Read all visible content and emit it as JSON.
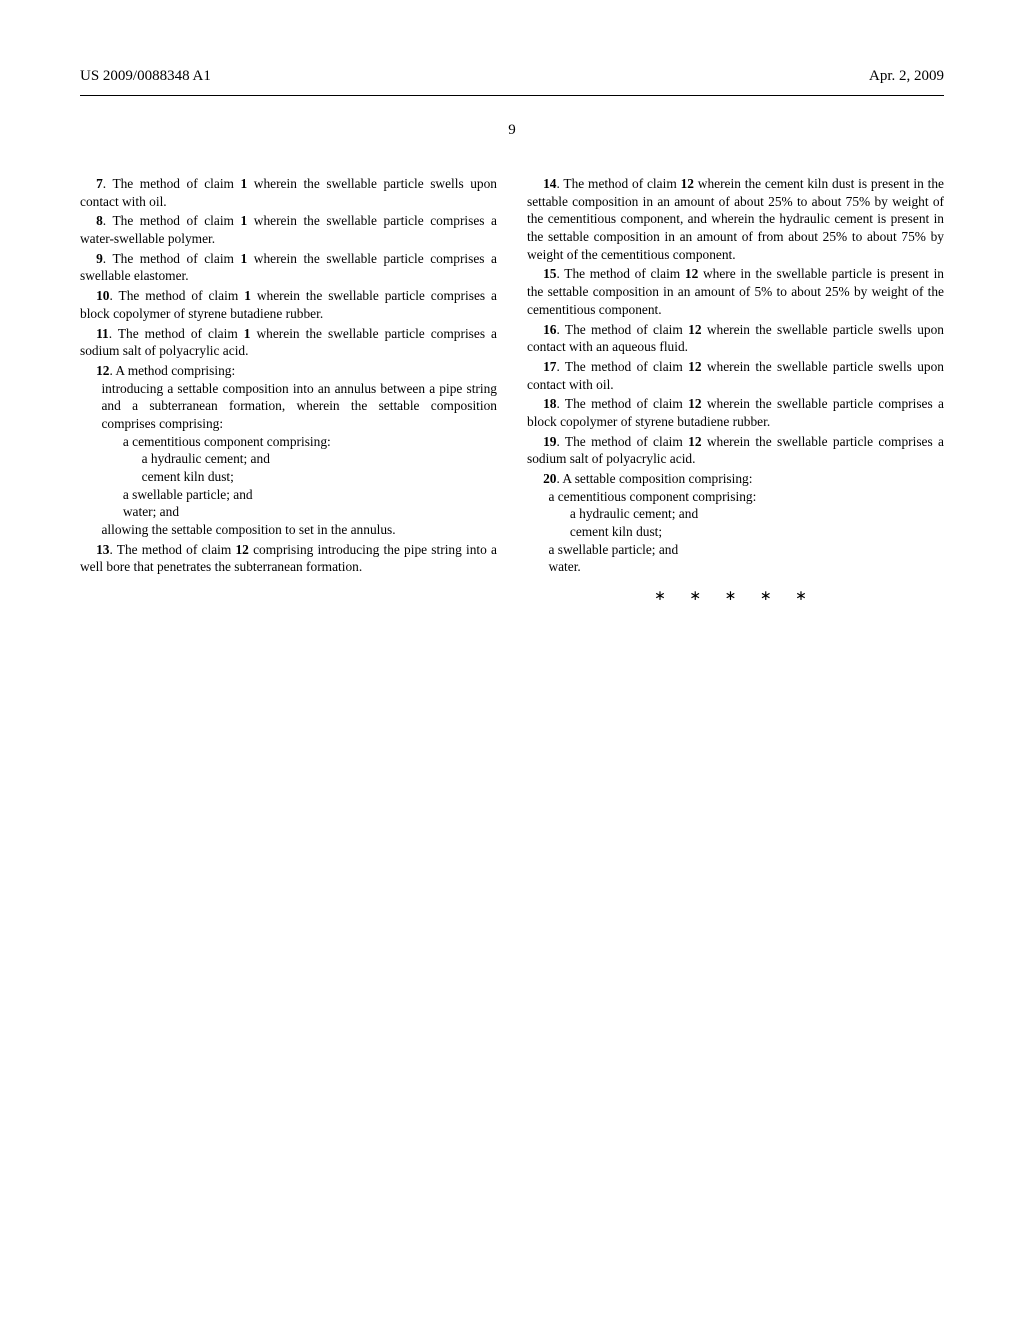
{
  "header": {
    "pub_number": "US 2009/0088348 A1",
    "pub_date": "Apr. 2, 2009",
    "page_number": "9"
  },
  "claims": {
    "c7": {
      "num": "7",
      "text": ". The method of claim ",
      "ref": "1",
      "tail": " wherein the swellable particle swells upon contact with oil."
    },
    "c8": {
      "num": "8",
      "text": ". The method of claim ",
      "ref": "1",
      "tail": " wherein the swellable particle comprises a water-swellable polymer."
    },
    "c9": {
      "num": "9",
      "text": ". The method of claim ",
      "ref": "1",
      "tail": " wherein the swellable particle comprises a swellable elastomer."
    },
    "c10": {
      "num": "10",
      "text": ". The method of claim ",
      "ref": "1",
      "tail": " wherein the swellable particle comprises a block copolymer of styrene butadiene rubber."
    },
    "c11": {
      "num": "11",
      "text": ". The method of claim ",
      "ref": "1",
      "tail": " wherein the swellable particle comprises a sodium salt of polyacrylic acid."
    },
    "c12": {
      "num": "12",
      "lead": ". A method comprising:",
      "body1": "introducing a settable composition into an annulus between a pipe string and a subterranean formation, wherein the settable composition comprises comprising:",
      "body2": "a cementitious component comprising:",
      "body3a": "a hydraulic cement; and",
      "body3b": "cement kiln dust;",
      "body4": "a swellable particle; and",
      "body5": "water; and",
      "body6": "allowing the settable composition to set in the annulus."
    },
    "c13": {
      "num": "13",
      "text": ". The method of claim ",
      "ref": "12",
      "tail": " comprising introducing the pipe string into a well bore that penetrates the subterranean formation."
    },
    "c14": {
      "num": "14",
      "text": ". The method of claim ",
      "ref": "12",
      "tail": " wherein the cement kiln dust is present in the settable composition in an amount of about 25% to about 75% by weight of the cementitious component, and wherein the hydraulic cement is present in the settable composition in an amount of from about 25% to about 75% by weight of the cementitious component."
    },
    "c15": {
      "num": "15",
      "text": ". The method of claim ",
      "ref": "12",
      "tail": " where in the swellable particle is present in the settable composition in an amount of 5% to about 25% by weight of the cementitious component."
    },
    "c16": {
      "num": "16",
      "text": ". The method of claim ",
      "ref": "12",
      "tail": " wherein the swellable particle swells upon contact with an aqueous fluid."
    },
    "c17": {
      "num": "17",
      "text": ". The method of claim ",
      "ref": "12",
      "tail": " wherein the swellable particle swells upon contact with oil."
    },
    "c18": {
      "num": "18",
      "text": ". The method of claim ",
      "ref": "12",
      "tail": " wherein the swellable particle comprises a block copolymer of styrene butadiene rubber."
    },
    "c19": {
      "num": "19",
      "text": ". The method of claim ",
      "ref": "12",
      "tail": " wherein the swellable particle comprises a sodium salt of polyacrylic acid."
    },
    "c20": {
      "num": "20",
      "lead": ". A settable composition comprising:",
      "body1": "a cementitious component comprising:",
      "body2a": "a hydraulic cement; and",
      "body2b": "cement kiln dust;",
      "body3": "a swellable particle; and",
      "body4": "water."
    }
  },
  "stars": "∗ ∗ ∗ ∗ ∗"
}
